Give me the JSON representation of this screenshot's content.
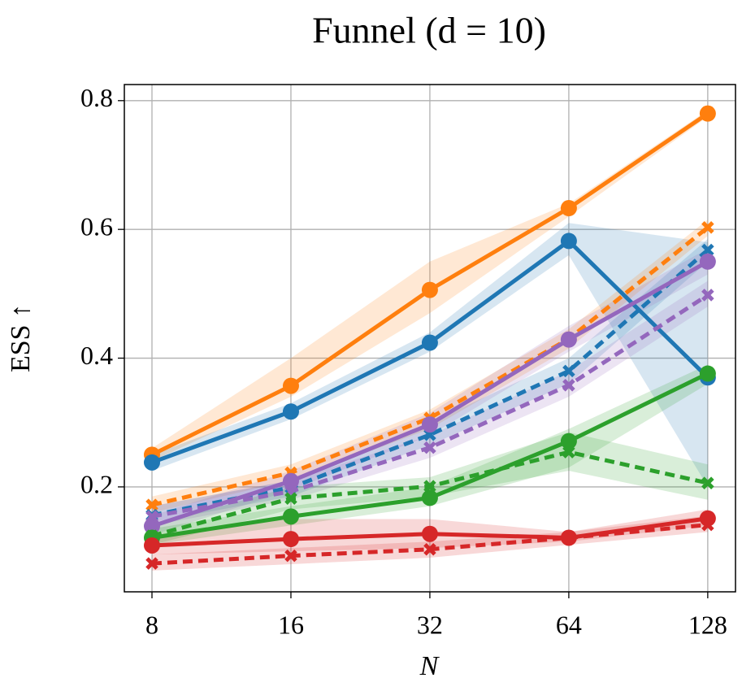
{
  "chart_data": {
    "type": "line",
    "title": "Funnel (d = 10)",
    "xlabel": "N",
    "ylabel": "ESS ↑",
    "x": [
      8,
      16,
      32,
      64,
      128
    ],
    "xscale": "log2",
    "xlim": [
      6.97,
      147
    ],
    "xticks": [
      8,
      16,
      32,
      64,
      128
    ],
    "ylim": [
      0.037,
      0.825
    ],
    "yticks": [
      0.2,
      0.4,
      0.6,
      0.8
    ],
    "grid": true,
    "series": [
      {
        "color": "#ff7f0e",
        "style": "solid",
        "marker": "o",
        "values": [
          0.25,
          0.357,
          0.506,
          0.633,
          0.78
        ],
        "lower": [
          0.24,
          0.34,
          0.47,
          0.62,
          0.775
        ],
        "upper": [
          0.26,
          0.4,
          0.55,
          0.64,
          0.785
        ]
      },
      {
        "color": "#1f77b4",
        "style": "solid",
        "marker": "o",
        "values": [
          0.238,
          0.317,
          0.424,
          0.582,
          0.37
        ],
        "lower": [
          0.225,
          0.305,
          0.41,
          0.56,
          0.2
        ],
        "upper": [
          0.25,
          0.33,
          0.44,
          0.61,
          0.58
        ]
      },
      {
        "color": "#ff7f0e",
        "style": "dashed",
        "marker": "x",
        "values": [
          0.172,
          0.222,
          0.307,
          0.43,
          0.603
        ],
        "lower": [
          0.16,
          0.21,
          0.29,
          0.415,
          0.59
        ],
        "upper": [
          0.185,
          0.235,
          0.32,
          0.445,
          0.615
        ]
      },
      {
        "color": "#1f77b4",
        "style": "dashed",
        "marker": "x",
        "values": [
          0.156,
          0.199,
          0.281,
          0.38,
          0.568
        ],
        "lower": [
          0.145,
          0.185,
          0.265,
          0.36,
          0.55
        ],
        "upper": [
          0.17,
          0.21,
          0.3,
          0.4,
          0.585
        ]
      },
      {
        "color": "#9467bd",
        "style": "solid",
        "marker": "o",
        "values": [
          0.139,
          0.209,
          0.297,
          0.429,
          0.55
        ],
        "lower": [
          0.125,
          0.195,
          0.28,
          0.41,
          0.53
        ],
        "upper": [
          0.155,
          0.225,
          0.315,
          0.45,
          0.57
        ]
      },
      {
        "color": "#9467bd",
        "style": "dashed",
        "marker": "x",
        "values": [
          0.154,
          0.193,
          0.261,
          0.358,
          0.498
        ],
        "lower": [
          0.14,
          0.18,
          0.245,
          0.34,
          0.48
        ],
        "upper": [
          0.17,
          0.21,
          0.28,
          0.38,
          0.52
        ]
      },
      {
        "color": "#2ca02c",
        "style": "solid",
        "marker": "o",
        "values": [
          0.121,
          0.154,
          0.183,
          0.271,
          0.376
        ],
        "lower": [
          0.11,
          0.14,
          0.17,
          0.23,
          0.36
        ],
        "upper": [
          0.135,
          0.17,
          0.2,
          0.29,
          0.39
        ]
      },
      {
        "color": "#2ca02c",
        "style": "dashed",
        "marker": "x",
        "values": [
          0.124,
          0.182,
          0.201,
          0.254,
          0.206
        ],
        "lower": [
          0.11,
          0.165,
          0.185,
          0.225,
          0.18
        ],
        "upper": [
          0.14,
          0.2,
          0.215,
          0.285,
          0.235
        ]
      },
      {
        "color": "#d62728",
        "style": "solid",
        "marker": "o",
        "values": [
          0.109,
          0.119,
          0.127,
          0.121,
          0.151
        ],
        "lower": [
          0.095,
          0.1,
          0.105,
          0.115,
          0.14
        ],
        "upper": [
          0.125,
          0.15,
          0.15,
          0.13,
          0.165
        ]
      },
      {
        "color": "#d62728",
        "style": "dashed",
        "marker": "x",
        "values": [
          0.081,
          0.093,
          0.103,
          0.121,
          0.141
        ],
        "lower": [
          0.07,
          0.08,
          0.09,
          0.11,
          0.13
        ],
        "upper": [
          0.095,
          0.105,
          0.115,
          0.13,
          0.155
        ]
      }
    ]
  }
}
